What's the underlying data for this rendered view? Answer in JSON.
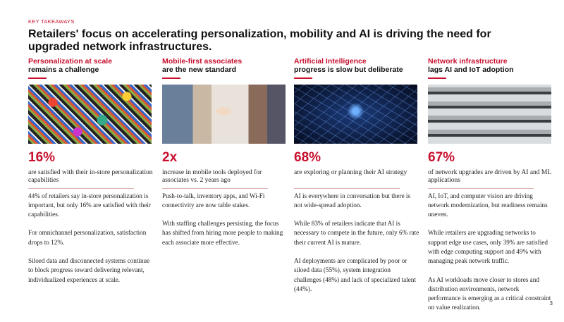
{
  "header": {
    "label": "KEY TAKEAWAYS",
    "title": "Retailers' focus on accelerating personalization, mobility and AI is driving the need for upgraded network infrastructures."
  },
  "columns": [
    {
      "heading_red": "Personalization at scale",
      "heading_black": "remains a challenge",
      "stat": "16%",
      "stat_caption": "are satisfied with their in-store personalization capabilities",
      "paragraphs": [
        "44% of retailers say in-store personalization is important, but only 16% are satisfied with their capabilities.",
        "For omnichannel personalization, satisfaction drops to 12%.",
        "Siloed data and disconnected systems continue to block progress toward delivering relevant, individualized experiences at scale."
      ]
    },
    {
      "heading_red": "Mobile-first associates",
      "heading_black": "are the new standard",
      "stat": "2x",
      "stat_caption": "increase in mobile tools deployed for associates vs. 2 years ago",
      "paragraphs": [
        "Push-to-talk, inventory apps, and Wi-Fi connectivity are now table stakes.",
        "With staffing challenges persisting, the focus has shifted from hiring more people to making each associate more effective."
      ]
    },
    {
      "heading_red": "Artificial Intelligence",
      "heading_black": "progress is slow but deliberate",
      "stat": "68%",
      "stat_caption": "are exploring or planning their AI strategy",
      "paragraphs": [
        "AI is everywhere in conversation but there is not wide-spread adoption.",
        "While 83% of retailers indicate that AI is necessary to compete in the future, only 6% rate their current AI is mature.",
        "AI deployments are complicated by poor or siloed data (55%), system integration challenges (48%) and lack of specialized talent (44%)."
      ]
    },
    {
      "heading_red": "Network infrastructure",
      "heading_black": "lags AI and IoT adoption",
      "stat": "67%",
      "stat_caption": "of network upgrades are driven by AI and ML applications",
      "paragraphs": [
        "AI, IoT, and computer vision are driving network modernization, but readiness remains uneven.",
        "While retailers are upgrading networks to support edge use cases, only 39% are satisfied with edge computing support and 49% with managing peak network traffic.",
        "As AI workloads move closer to stores and distribution environments, network performance is emerging as a critical constraint on value realization."
      ]
    }
  ],
  "page_number": "3"
}
